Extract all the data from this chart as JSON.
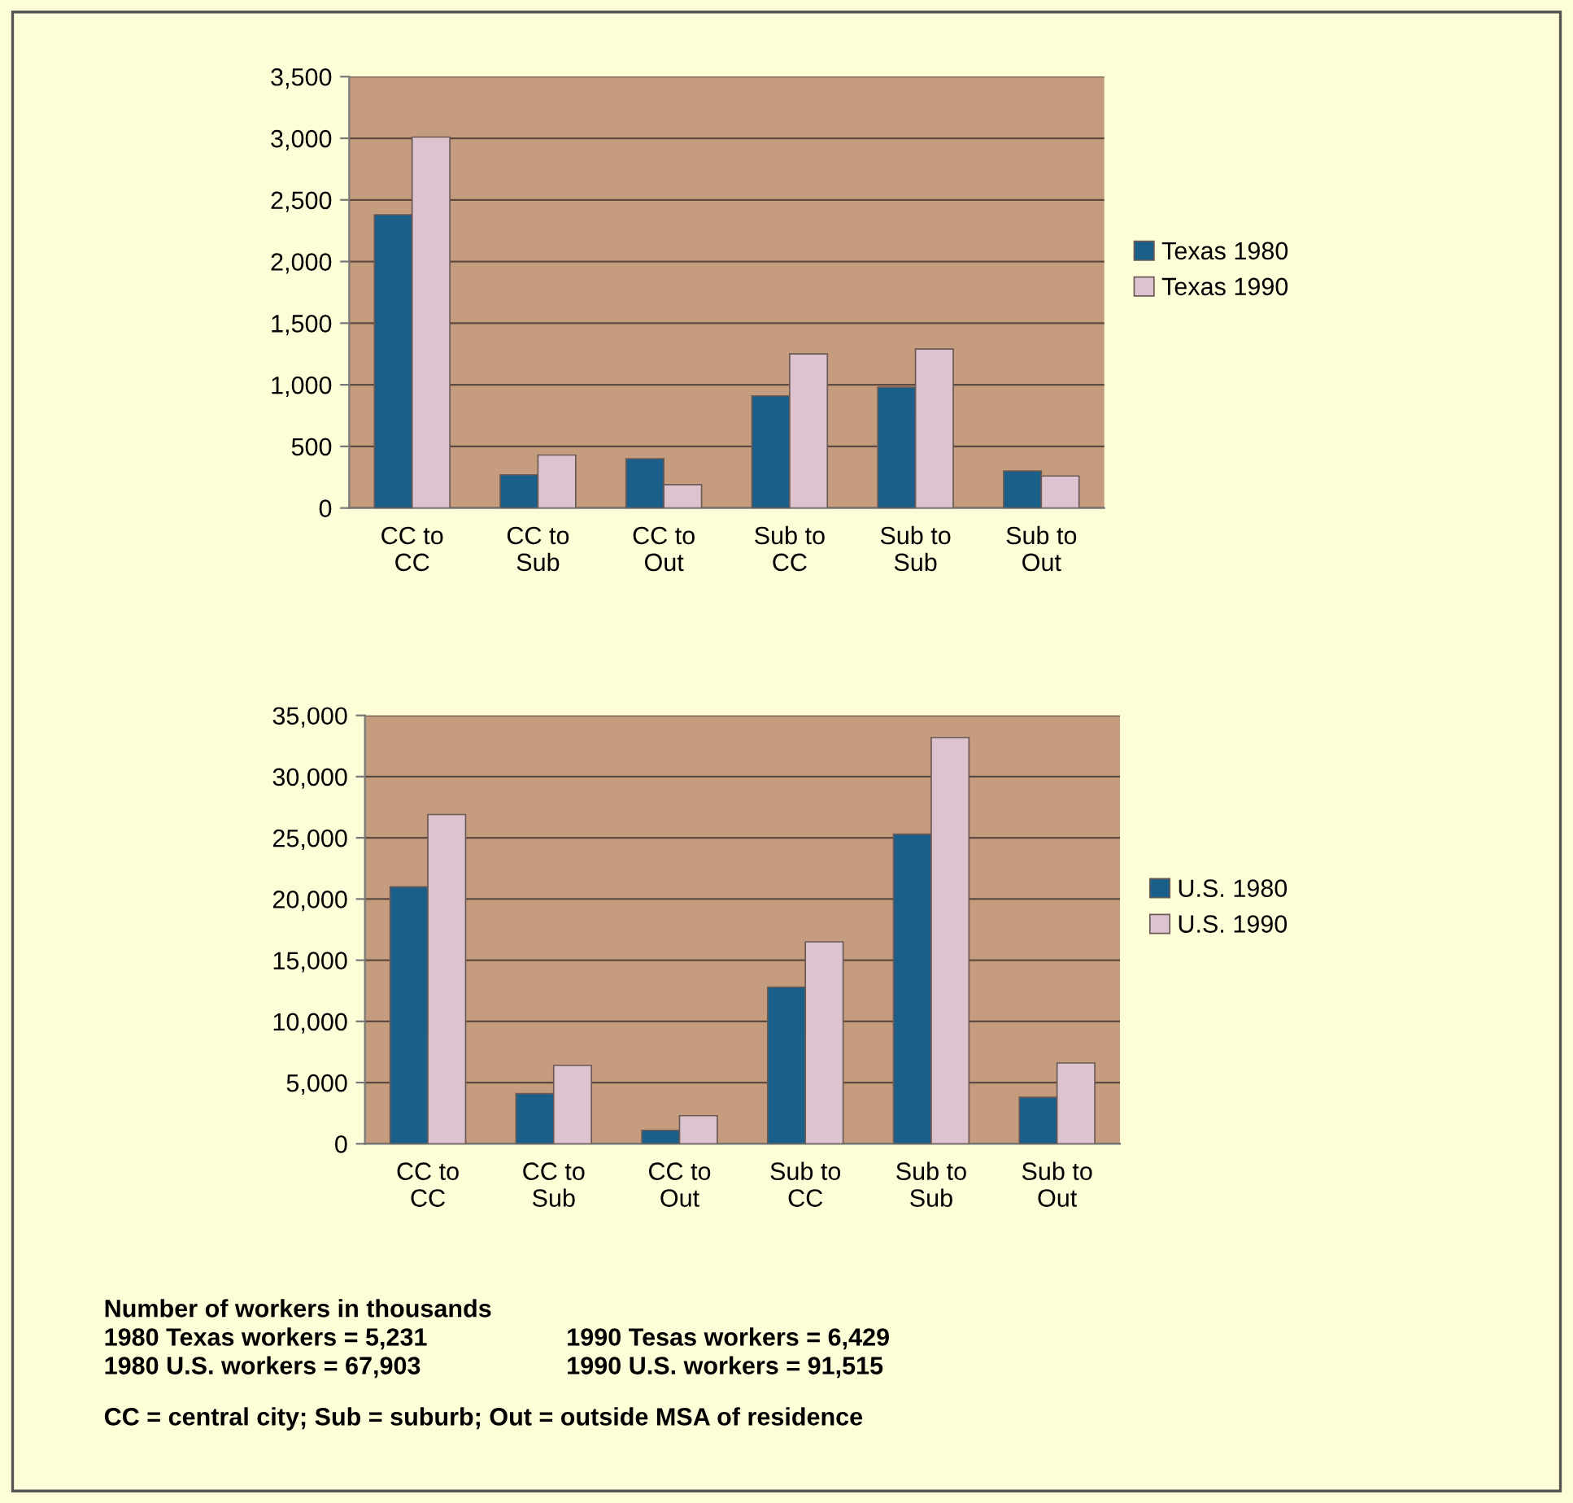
{
  "chart_data": [
    {
      "type": "bar",
      "categories": [
        "CC to\nCC",
        "CC to\nSub",
        "CC to\nOut",
        "Sub to\nCC",
        "Sub to\nSub",
        "Sub to\nOut"
      ],
      "series": [
        {
          "name": "Texas 1980",
          "color": "#1a5e8a",
          "values": [
            2380,
            270,
            400,
            910,
            980,
            300
          ]
        },
        {
          "name": "Texas 1990",
          "color": "#dcc3cf",
          "values": [
            3010,
            430,
            190,
            1250,
            1290,
            260
          ]
        }
      ],
      "ylim": [
        0,
        3500
      ],
      "yticks": [
        {
          "value": 0,
          "label": "0"
        },
        {
          "value": 500,
          "label": "500"
        },
        {
          "value": 1000,
          "label": "1,000"
        },
        {
          "value": 1500,
          "label": "1,500"
        },
        {
          "value": 2000,
          "label": "2,000"
        },
        {
          "value": 2500,
          "label": "2,500"
        },
        {
          "value": 3000,
          "label": "3,000"
        },
        {
          "value": 3500,
          "label": "3,500"
        }
      ],
      "grid": "y",
      "legend": "right"
    },
    {
      "type": "bar",
      "categories": [
        "CC to\nCC",
        "CC to\nSub",
        "CC to\nOut",
        "Sub to\nCC",
        "Sub to\nSub",
        "Sub to\nOut"
      ],
      "series": [
        {
          "name": "U.S. 1980",
          "color": "#1a5e8a",
          "values": [
            21000,
            4100,
            1100,
            12800,
            25300,
            3800
          ]
        },
        {
          "name": "U.S. 1990",
          "color": "#dcc3cf",
          "values": [
            26900,
            6400,
            2300,
            16500,
            33200,
            6600
          ]
        }
      ],
      "ylim": [
        0,
        35000
      ],
      "yticks": [
        {
          "value": 0,
          "label": "0"
        },
        {
          "value": 5000,
          "label": "5,000"
        },
        {
          "value": 10000,
          "label": "10,000"
        },
        {
          "value": 15000,
          "label": "15,000"
        },
        {
          "value": 20000,
          "label": "20,000"
        },
        {
          "value": 25000,
          "label": "25,000"
        },
        {
          "value": 30000,
          "label": "30,000"
        },
        {
          "value": 35000,
          "label": "35,000"
        }
      ],
      "grid": "y",
      "legend": "right",
      "annotations": [
        "Number of workers in thousands",
        "1980 Texas workers = 5,231",
        "1990 Tesas workers = 6,429",
        "1980 U.S. workers = 67,903",
        "1990 U.S. workers = 91,515",
        "CC = central city; Sub = suburb; Out = outside MSA of residence"
      ]
    }
  ]
}
